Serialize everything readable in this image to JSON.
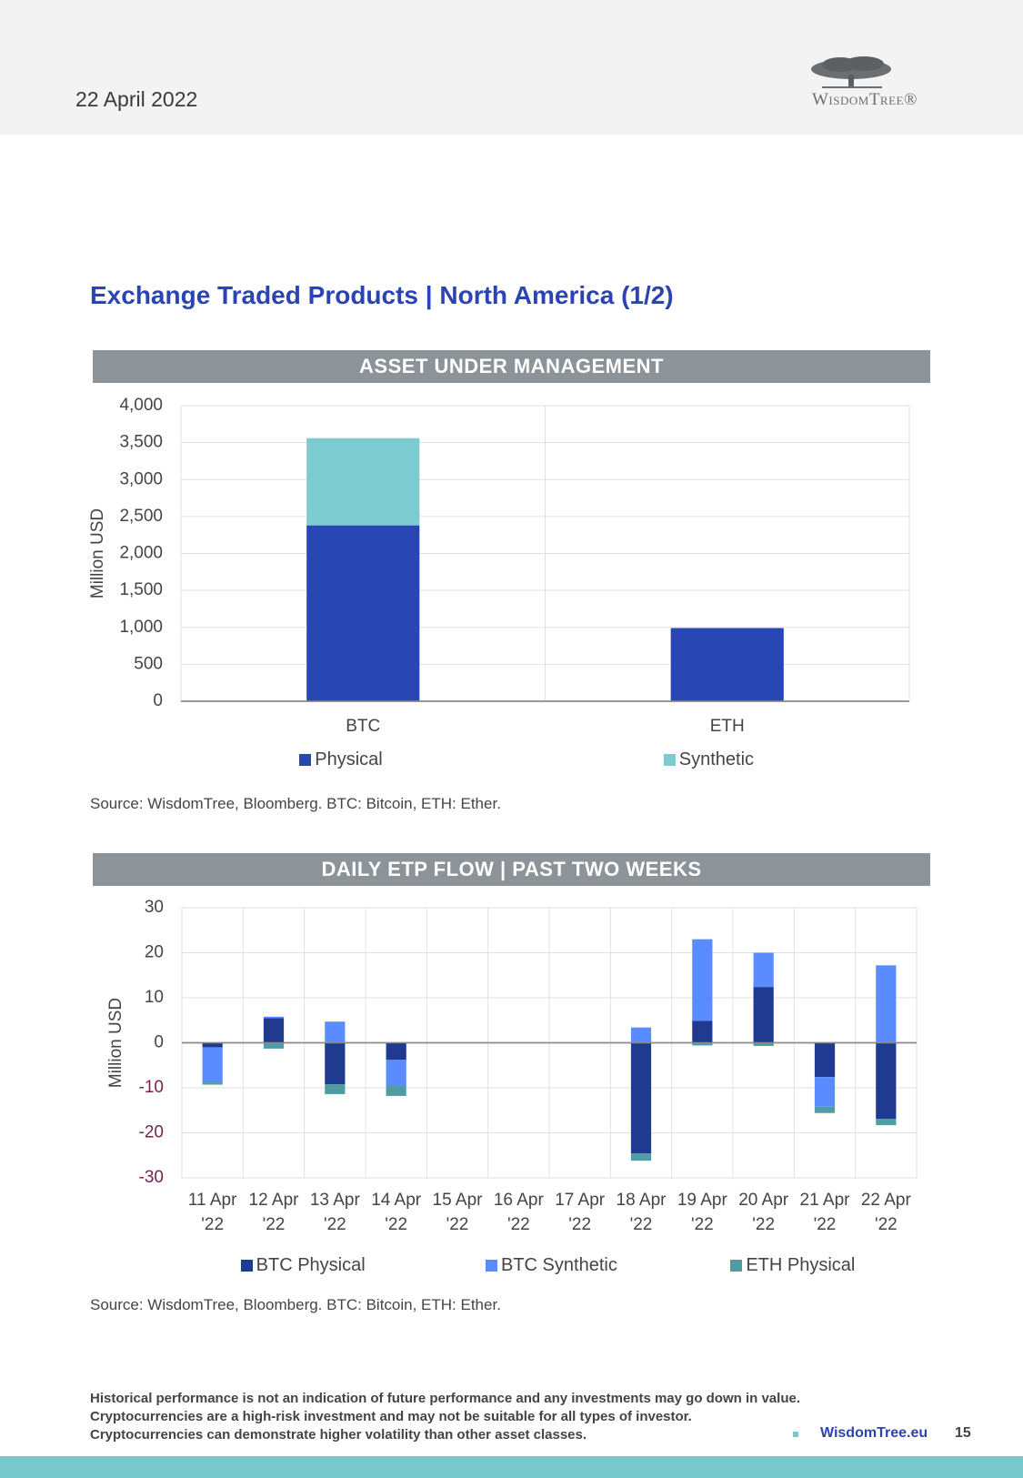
{
  "header": {
    "date": "22 April 2022",
    "logo": "WisdomTree®"
  },
  "section_title": "Exchange Traded Products | North America (1/2)",
  "chart_data": [
    {
      "type": "bar",
      "stacked": true,
      "title": "ASSET UNDER MANAGEMENT",
      "y_label": "Million USD",
      "categories": [
        "BTC",
        "ETH"
      ],
      "series": [
        {
          "name": "Physical",
          "color": "#2946b5",
          "values": [
            2380,
            990
          ]
        },
        {
          "name": "Synthetic",
          "color": "#7ccbd0",
          "values": [
            1180,
            0
          ]
        }
      ],
      "ylim": [
        0,
        4000
      ],
      "yticks": [
        0,
        500,
        {
          "value": 1000,
          "label": "1,000"
        },
        {
          "value": 1500,
          "label": "1,500"
        },
        {
          "value": 2000,
          "label": "2,000"
        },
        {
          "value": 2500,
          "label": "2,500"
        },
        {
          "value": 3000,
          "label": "3,000"
        },
        {
          "value": 3500,
          "label": "3,500"
        },
        {
          "value": 4000,
          "label": "4,000"
        }
      ],
      "grid": true,
      "source": "Source: WisdomTree, Bloomberg. BTC: Bitcoin, ETH: Ether."
    },
    {
      "type": "bar",
      "stacked": true,
      "title": "DAILY ETP FLOW | PAST TWO WEEKS",
      "y_label": "Million USD",
      "categories": [
        "11 Apr '22",
        "12 Apr '22",
        "13 Apr '22",
        "14 Apr '22",
        "15 Apr '22",
        "16 Apr '22",
        "17 Apr '22",
        "18 Apr '22",
        "19 Apr '22",
        "20 Apr '22",
        "21 Apr '22",
        "22 Apr '22"
      ],
      "series": [
        {
          "name": "BTC Physical",
          "color": "#1f3a8f",
          "values": [
            -1,
            5.5,
            -9.2,
            -3.8,
            0,
            0,
            0,
            -24.6,
            4.9,
            12.4,
            -7.6,
            -16.9
          ]
        },
        {
          "name": "BTC Synthetic",
          "color": "#5b8cff",
          "values": [
            -7.8,
            0.3,
            4.7,
            -5.8,
            0,
            0,
            0,
            3.4,
            18.1,
            7.6,
            -6.6,
            17.2
          ]
        },
        {
          "name": "ETH Physical",
          "color": "#4f9ca3",
          "values": [
            -0.5,
            -1.3,
            -2.2,
            -2.2,
            0,
            0,
            0,
            -1.6,
            -0.6,
            -0.7,
            -1.4,
            -1.4
          ]
        }
      ],
      "ylim": [
        -30,
        30
      ],
      "yticks": [
        -30,
        -20,
        -10,
        0,
        10,
        20,
        30
      ],
      "grid": true,
      "source": "Source: WisdomTree, Bloomberg. BTC: Bitcoin, ETH: Ether."
    }
  ],
  "disclaimer": [
    "Historical performance is not an indication of future performance and any investments may go down in value.",
    "Cryptocurrencies are a high-risk investment and may not be suitable for all types of investor.",
    "Cryptocurrencies can demonstrate higher volatility than other asset classes."
  ],
  "footer": {
    "link": "WisdomTree.eu",
    "page": "15"
  }
}
